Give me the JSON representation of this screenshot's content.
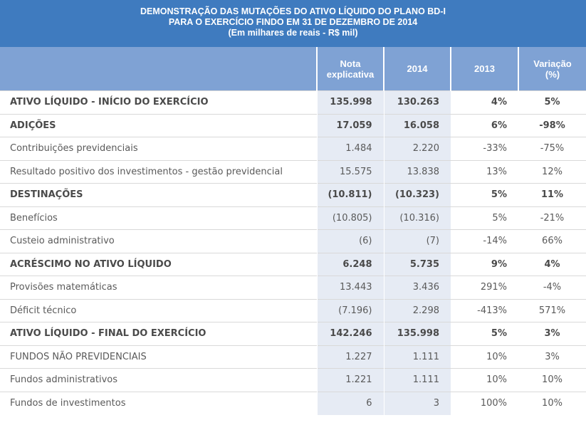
{
  "title": {
    "line1": "DEMONSTRAÇÃO DAS MUTAÇÕES DO ATIVO LÍQUIDO DO PLANO BD-I",
    "line2": "PARA O EXERCÍCIO FINDO EM 31 DE DEZEMBRO DE 2014",
    "line3": "(Em milhares de reais - R$ mil)"
  },
  "columns": {
    "label": "",
    "nota_line1": "Nota",
    "nota_line2": "explicativa",
    "y2014": "2014",
    "y2013": "2013",
    "var_line1": "Variação",
    "var_line2": "(%)"
  },
  "rows": [
    {
      "label": "ATIVO LÍQUIDO - INÍCIO DO EXERCÍCIO",
      "nota": "135.998",
      "y2014": "130.263",
      "y2013": "4%",
      "var": "5%",
      "bold": true
    },
    {
      "label": "ADIÇÕES",
      "nota": "17.059",
      "y2014": "16.058",
      "y2013": "6%",
      "var": "-98%",
      "bold": true
    },
    {
      "label": "Contribuições previdenciais",
      "nota": "1.484",
      "y2014": "2.220",
      "y2013": "-33%",
      "var": "-75%",
      "bold": false
    },
    {
      "label": "Resultado positivo dos investimentos - gestão previdencial",
      "nota": "15.575",
      "y2014": "13.838",
      "y2013": "13%",
      "var": "12%",
      "bold": false
    },
    {
      "label": "DESTINAÇÕES",
      "nota": "(10.811)",
      "y2014": "(10.323)",
      "y2013": "5%",
      "var": "11%",
      "bold": true
    },
    {
      "label": "Benefícios",
      "nota": "(10.805)",
      "y2014": "(10.316)",
      "y2013": "5%",
      "var": "-21%",
      "bold": false
    },
    {
      "label": "Custeio administrativo",
      "nota": "(6)",
      "y2014": "(7)",
      "y2013": "-14%",
      "var": "66%",
      "bold": false
    },
    {
      "label": "ACRÉSCIMO NO ATIVO LÍQUIDO",
      "nota": "6.248",
      "y2014": "5.735",
      "y2013": "9%",
      "var": "4%",
      "bold": true
    },
    {
      "label": "Provisões matemáticas",
      "nota": "13.443",
      "y2014": "3.436",
      "y2013": "291%",
      "var": "-4%",
      "bold": false
    },
    {
      "label": "Déficit técnico",
      "nota": "(7.196)",
      "y2014": "2.298",
      "y2013": "-413%",
      "var": "571%",
      "bold": false
    },
    {
      "label": "ATIVO LÍQUIDO - FINAL DO EXERCÍCIO",
      "nota": "142.246",
      "y2014": "135.998",
      "y2013": "5%",
      "var": "3%",
      "bold": true
    },
    {
      "label": "FUNDOS NÃO PREVIDENCIAIS",
      "nota": "1.227",
      "y2014": "1.111",
      "y2013": "10%",
      "var": "3%",
      "bold": false
    },
    {
      "label": "Fundos administrativos",
      "nota": "1.221",
      "y2014": "1.111",
      "y2013": "10%",
      "var": "10%",
      "bold": false
    },
    {
      "label": "Fundos de investimentos",
      "nota": "6",
      "y2014": "3",
      "y2013": "100%",
      "var": "10%",
      "bold": false
    }
  ]
}
